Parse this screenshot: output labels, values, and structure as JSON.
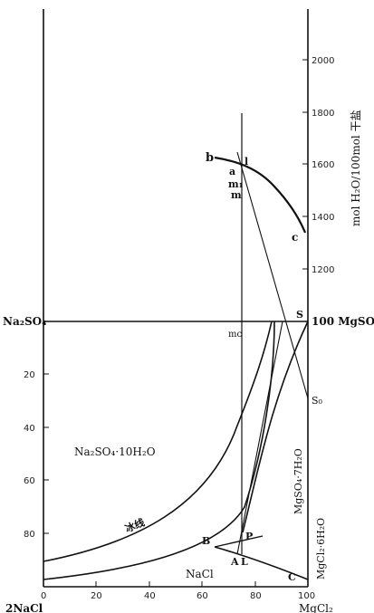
{
  "figure": {
    "corners": {
      "top_left": "Na₂SO₄",
      "top_right": "100 MgSO₄",
      "bottom_left": "2NaCl",
      "bottom_right": "MgCl₂"
    },
    "right_axis_title": "mol H₂O/100mol 干盐",
    "right_ticks": [
      "2000",
      "1800",
      "1600",
      "1400",
      "1200"
    ],
    "left_ticks": [
      "20",
      "40",
      "60",
      "80"
    ],
    "bottom_ticks": [
      "0",
      "20",
      "40",
      "60",
      "80",
      "100"
    ],
    "points": {
      "b": "b",
      "a": "a",
      "l": "l",
      "m1": "m₁",
      "m": "m",
      "c": "c",
      "S": "S",
      "mc": "mᴄ",
      "S0": "S₀",
      "B": "B",
      "P": "P",
      "A": "A",
      "L": "L",
      "C": "C"
    },
    "regions": {
      "na2so4": "Na₂SO₄·10H₂O",
      "ice_line": "冰线",
      "mgso4": "MgSO₄·7H₂O",
      "mgcl2": "MgCl₂·6H₂O",
      "nacl": "NaCl"
    }
  }
}
